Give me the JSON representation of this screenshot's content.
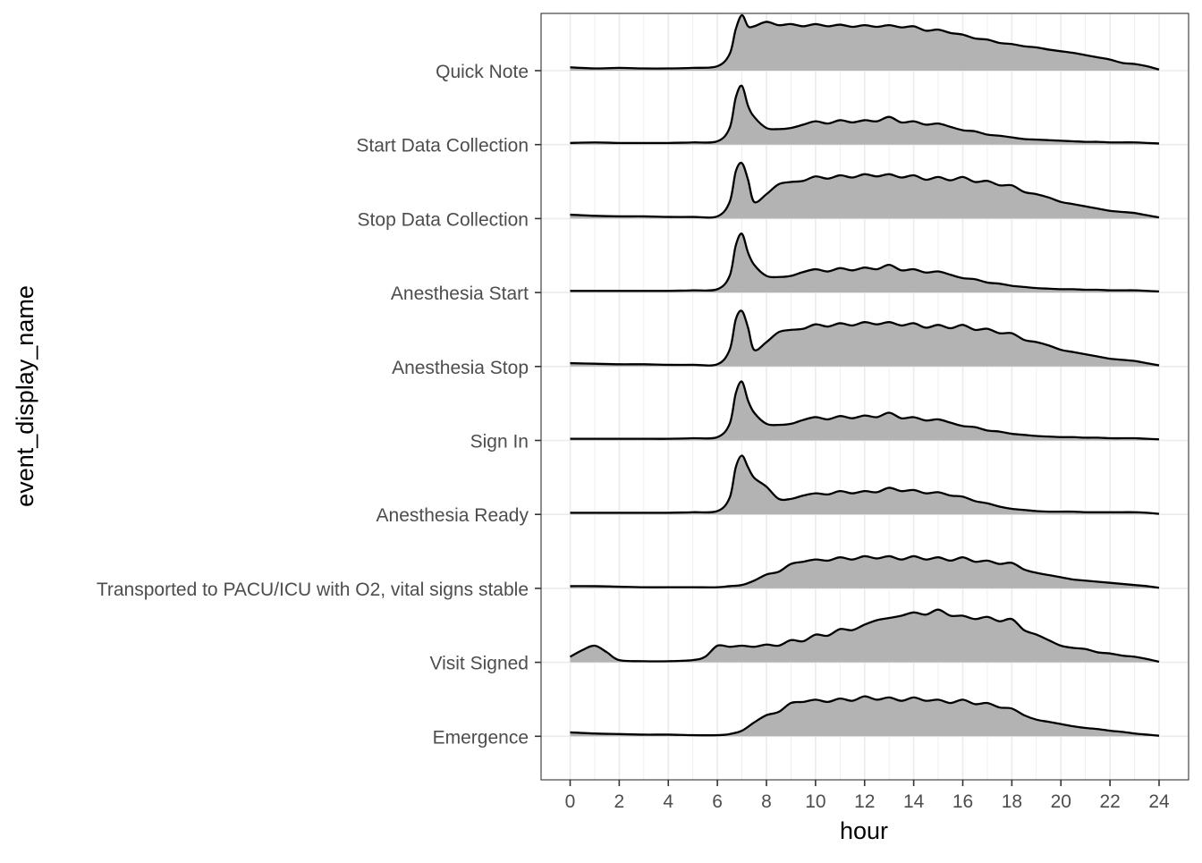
{
  "chart_data": {
    "type": "area",
    "subtype": "ridgeline",
    "title": "",
    "xlabel": "hour",
    "ylabel": "event_display_name",
    "xlim": [
      0,
      24
    ],
    "x_major_ticks": [
      0,
      2,
      4,
      6,
      8,
      10,
      12,
      14,
      16,
      18,
      20,
      22,
      24
    ],
    "x_tick_labels": [
      "0",
      "2",
      "4",
      "6",
      "8",
      "10",
      "12",
      "14",
      "16",
      "18",
      "20",
      "22",
      "24"
    ],
    "grid": true,
    "legend": "none",
    "colors": {
      "fill": "#b3b3b3",
      "line": "#000000",
      "grid": "#ebebeb",
      "panel_border": "#333333",
      "tick_label": "#4d4d4d"
    },
    "categories": [
      "Quick Note",
      "Start Data Collection",
      "Stop Data Collection",
      "Anesthesia Start",
      "Anesthesia Stop",
      "Sign In",
      "Anesthesia Ready",
      "Transported to PACU/ICU with O2, vital signs stable",
      "Visit Signed",
      "Emergence"
    ],
    "series": [
      {
        "name": "Quick Note",
        "x": [
          0,
          1,
          2,
          3,
          4,
          5,
          6,
          6.5,
          6.75,
          7,
          7.25,
          7.5,
          8,
          8.5,
          9,
          9.5,
          10,
          10.5,
          11,
          11.5,
          12,
          12.5,
          13,
          13.5,
          14,
          14.5,
          15,
          15.5,
          16,
          16.5,
          17,
          17.5,
          18,
          18.5,
          19,
          19.5,
          20,
          20.5,
          21,
          21.5,
          22,
          22.5,
          23,
          23.5,
          24
        ],
        "y": [
          0.06,
          0.04,
          0.05,
          0.04,
          0.04,
          0.05,
          0.08,
          0.3,
          0.75,
          1.0,
          0.8,
          0.8,
          0.88,
          0.82,
          0.84,
          0.8,
          0.84,
          0.8,
          0.83,
          0.79,
          0.82,
          0.79,
          0.82,
          0.78,
          0.8,
          0.72,
          0.74,
          0.68,
          0.65,
          0.58,
          0.56,
          0.5,
          0.48,
          0.44,
          0.42,
          0.38,
          0.35,
          0.32,
          0.28,
          0.24,
          0.2,
          0.14,
          0.12,
          0.08,
          0.02
        ]
      },
      {
        "name": "Start Data Collection",
        "x": [
          0,
          1,
          2,
          3,
          4,
          5,
          6,
          6.5,
          6.75,
          7,
          7.25,
          7.5,
          8,
          8.5,
          9,
          9.5,
          10,
          10.5,
          11,
          11.5,
          12,
          12.5,
          13,
          13.5,
          14,
          14.5,
          15,
          15.5,
          16,
          16.5,
          17,
          17.5,
          18,
          18.5,
          19,
          19.5,
          20,
          20.5,
          21,
          21.5,
          22,
          22.5,
          23,
          23.5,
          24
        ],
        "y": [
          0.03,
          0.04,
          0.03,
          0.03,
          0.03,
          0.04,
          0.06,
          0.3,
          0.85,
          1.06,
          0.7,
          0.5,
          0.3,
          0.28,
          0.3,
          0.36,
          0.42,
          0.38,
          0.44,
          0.4,
          0.44,
          0.42,
          0.5,
          0.4,
          0.42,
          0.36,
          0.38,
          0.32,
          0.26,
          0.24,
          0.18,
          0.16,
          0.13,
          0.1,
          0.09,
          0.08,
          0.07,
          0.06,
          0.05,
          0.05,
          0.04,
          0.04,
          0.04,
          0.03,
          0.02
        ]
      },
      {
        "name": "Stop Data Collection",
        "x": [
          0,
          1,
          2,
          3,
          4,
          5,
          6,
          6.5,
          6.75,
          7,
          7.25,
          7.5,
          8,
          8.5,
          9,
          9.5,
          10,
          10.5,
          11,
          11.5,
          12,
          12.5,
          13,
          13.5,
          14,
          14.5,
          15,
          15.5,
          16,
          16.5,
          17,
          17.5,
          18,
          18.5,
          19,
          19.5,
          20,
          20.5,
          21,
          21.5,
          22,
          22.5,
          23,
          23.5,
          24
        ],
        "y": [
          0.07,
          0.05,
          0.04,
          0.04,
          0.03,
          0.03,
          0.04,
          0.3,
          0.85,
          1.0,
          0.7,
          0.3,
          0.44,
          0.62,
          0.66,
          0.68,
          0.76,
          0.72,
          0.78,
          0.74,
          0.8,
          0.76,
          0.8,
          0.74,
          0.78,
          0.7,
          0.75,
          0.69,
          0.75,
          0.66,
          0.68,
          0.6,
          0.6,
          0.48,
          0.44,
          0.38,
          0.3,
          0.26,
          0.22,
          0.18,
          0.14,
          0.12,
          0.1,
          0.06,
          0.02
        ]
      },
      {
        "name": "Anesthesia Start",
        "x": [
          0,
          1,
          2,
          3,
          4,
          5,
          6,
          6.5,
          6.75,
          7,
          7.25,
          7.5,
          8,
          8.5,
          9,
          9.5,
          10,
          10.5,
          11,
          11.5,
          12,
          12.5,
          13,
          13.5,
          14,
          14.5,
          15,
          15.5,
          16,
          16.5,
          17,
          17.5,
          18,
          18.5,
          19,
          19.5,
          20,
          20.5,
          21,
          21.5,
          22,
          22.5,
          23,
          23.5,
          24
        ],
        "y": [
          0.03,
          0.03,
          0.03,
          0.03,
          0.03,
          0.04,
          0.06,
          0.3,
          0.85,
          1.06,
          0.72,
          0.5,
          0.3,
          0.28,
          0.3,
          0.37,
          0.42,
          0.38,
          0.44,
          0.4,
          0.45,
          0.42,
          0.5,
          0.4,
          0.42,
          0.36,
          0.38,
          0.32,
          0.26,
          0.24,
          0.18,
          0.16,
          0.12,
          0.1,
          0.08,
          0.07,
          0.06,
          0.06,
          0.05,
          0.05,
          0.04,
          0.04,
          0.04,
          0.03,
          0.02
        ]
      },
      {
        "name": "Anesthesia Stop",
        "x": [
          0,
          1,
          2,
          3,
          4,
          5,
          6,
          6.5,
          6.75,
          7,
          7.25,
          7.5,
          8,
          8.5,
          9,
          9.5,
          10,
          10.5,
          11,
          11.5,
          12,
          12.5,
          13,
          13.5,
          14,
          14.5,
          15,
          15.5,
          16,
          16.5,
          17,
          17.5,
          18,
          18.5,
          19,
          19.5,
          20,
          20.5,
          21,
          21.5,
          22,
          22.5,
          23,
          23.5,
          24
        ],
        "y": [
          0.06,
          0.05,
          0.04,
          0.04,
          0.03,
          0.03,
          0.04,
          0.3,
          0.85,
          1.0,
          0.7,
          0.3,
          0.44,
          0.62,
          0.66,
          0.68,
          0.76,
          0.72,
          0.78,
          0.74,
          0.8,
          0.76,
          0.8,
          0.74,
          0.78,
          0.7,
          0.75,
          0.69,
          0.75,
          0.66,
          0.68,
          0.6,
          0.6,
          0.48,
          0.44,
          0.38,
          0.3,
          0.26,
          0.22,
          0.18,
          0.14,
          0.12,
          0.1,
          0.06,
          0.02
        ]
      },
      {
        "name": "Sign In",
        "x": [
          0,
          1,
          2,
          3,
          4,
          5,
          6,
          6.5,
          6.75,
          7,
          7.25,
          7.5,
          8,
          8.5,
          9,
          9.5,
          10,
          10.5,
          11,
          11.5,
          12,
          12.5,
          13,
          13.5,
          14,
          14.5,
          15,
          15.5,
          16,
          16.5,
          17,
          17.5,
          18,
          18.5,
          19,
          19.5,
          20,
          20.5,
          21,
          21.5,
          22,
          22.5,
          23,
          23.5,
          24
        ],
        "y": [
          0.03,
          0.03,
          0.03,
          0.03,
          0.03,
          0.04,
          0.06,
          0.3,
          0.85,
          1.06,
          0.72,
          0.5,
          0.3,
          0.28,
          0.3,
          0.37,
          0.42,
          0.38,
          0.44,
          0.4,
          0.45,
          0.42,
          0.5,
          0.4,
          0.42,
          0.36,
          0.38,
          0.32,
          0.26,
          0.24,
          0.18,
          0.16,
          0.12,
          0.1,
          0.08,
          0.07,
          0.06,
          0.06,
          0.05,
          0.05,
          0.04,
          0.04,
          0.04,
          0.03,
          0.02
        ]
      },
      {
        "name": "Anesthesia Ready",
        "x": [
          0,
          1,
          2,
          3,
          4,
          5,
          6,
          6.5,
          6.75,
          7,
          7.25,
          7.5,
          8,
          8.5,
          9,
          9.5,
          10,
          10.5,
          11,
          11.5,
          12,
          12.5,
          13,
          13.5,
          14,
          14.5,
          15,
          15.5,
          16,
          16.5,
          17,
          17.5,
          18,
          18.5,
          19,
          19.5,
          20,
          20.5,
          21,
          21.5,
          22,
          22.5,
          23,
          23.5,
          24
        ],
        "y": [
          0.03,
          0.03,
          0.03,
          0.03,
          0.03,
          0.04,
          0.06,
          0.3,
          0.85,
          1.06,
          0.85,
          0.66,
          0.5,
          0.28,
          0.28,
          0.34,
          0.38,
          0.36,
          0.42,
          0.38,
          0.42,
          0.4,
          0.48,
          0.42,
          0.44,
          0.38,
          0.4,
          0.34,
          0.32,
          0.24,
          0.2,
          0.14,
          0.1,
          0.08,
          0.06,
          0.05,
          0.05,
          0.05,
          0.04,
          0.04,
          0.04,
          0.04,
          0.04,
          0.03,
          0.01
        ]
      },
      {
        "name": "Transported to PACU/ICU with O2, vital signs stable",
        "x": [
          0,
          1,
          2,
          3,
          4,
          5,
          6,
          6.5,
          7,
          7.5,
          8,
          8.5,
          9,
          9.5,
          10,
          10.5,
          11,
          11.5,
          12,
          12.5,
          13,
          13.5,
          14,
          14.5,
          15,
          15.5,
          16,
          16.5,
          17,
          17.5,
          18,
          18.5,
          19,
          19.5,
          20,
          20.5,
          21,
          21.5,
          22,
          22.5,
          23,
          23.5,
          24
        ],
        "y": [
          0.04,
          0.04,
          0.03,
          0.02,
          0.02,
          0.02,
          0.02,
          0.04,
          0.06,
          0.14,
          0.25,
          0.3,
          0.44,
          0.48,
          0.52,
          0.5,
          0.56,
          0.52,
          0.58,
          0.54,
          0.58,
          0.52,
          0.58,
          0.52,
          0.56,
          0.5,
          0.56,
          0.48,
          0.5,
          0.44,
          0.46,
          0.34,
          0.28,
          0.24,
          0.2,
          0.16,
          0.14,
          0.12,
          0.1,
          0.08,
          0.06,
          0.04,
          0.01
        ]
      },
      {
        "name": "Visit Signed",
        "x": [
          0,
          0.5,
          1,
          1.5,
          2,
          3,
          4,
          5,
          5.5,
          6,
          6.5,
          7,
          7.5,
          8,
          8.5,
          9,
          9.5,
          10,
          10.5,
          11,
          11.5,
          12,
          12.5,
          13,
          13.5,
          14,
          14.5,
          15,
          15.5,
          16,
          16.5,
          17,
          17.5,
          18,
          18.5,
          19,
          19.5,
          20,
          20.5,
          21,
          21.5,
          22,
          22.5,
          23,
          23.5,
          24
        ],
        "y": [
          0.1,
          0.22,
          0.3,
          0.18,
          0.04,
          0.02,
          0.02,
          0.04,
          0.1,
          0.3,
          0.28,
          0.3,
          0.28,
          0.32,
          0.3,
          0.4,
          0.38,
          0.5,
          0.48,
          0.6,
          0.58,
          0.68,
          0.76,
          0.8,
          0.84,
          0.9,
          0.86,
          0.95,
          0.84,
          0.84,
          0.78,
          0.82,
          0.74,
          0.78,
          0.58,
          0.5,
          0.4,
          0.3,
          0.26,
          0.24,
          0.18,
          0.16,
          0.12,
          0.1,
          0.06,
          0.01
        ]
      },
      {
        "name": "Emergence",
        "x": [
          0,
          1,
          2,
          3,
          4,
          5,
          6,
          6.5,
          7,
          7.5,
          8,
          8.5,
          9,
          9.5,
          10,
          10.5,
          11,
          11.5,
          12,
          12.5,
          13,
          13.5,
          14,
          14.5,
          15,
          15.5,
          16,
          16.5,
          17,
          17.5,
          18,
          18.5,
          19,
          19.5,
          20,
          20.5,
          21,
          21.5,
          22,
          22.5,
          23,
          23.5,
          24
        ],
        "y": [
          0.07,
          0.05,
          0.04,
          0.03,
          0.03,
          0.02,
          0.02,
          0.04,
          0.1,
          0.25,
          0.38,
          0.44,
          0.6,
          0.62,
          0.66,
          0.62,
          0.68,
          0.64,
          0.72,
          0.66,
          0.7,
          0.64,
          0.7,
          0.64,
          0.66,
          0.6,
          0.66,
          0.58,
          0.6,
          0.52,
          0.5,
          0.38,
          0.3,
          0.26,
          0.22,
          0.18,
          0.15,
          0.13,
          0.1,
          0.08,
          0.05,
          0.03,
          0.01
        ]
      }
    ]
  }
}
